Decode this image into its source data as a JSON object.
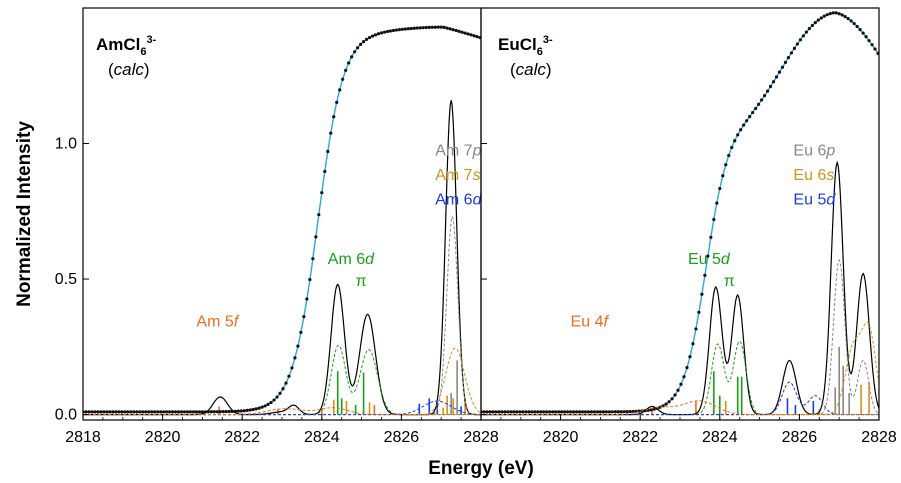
{
  "chart_data": {
    "type": "line",
    "xlabel": "Energy (eV)",
    "ylabel": "Normalized Intensity",
    "ylim": [
      -0.02,
      1.5
    ],
    "grid": false,
    "colors": {
      "total": "#000000",
      "fit": "#29a8e0",
      "p": "#888888",
      "s": "#d8901a",
      "d": "#1a3de0",
      "d_pi": "#18a018",
      "f": "#f06c20"
    },
    "panels": [
      {
        "title": "AmCl",
        "title_sub": "6",
        "title_sup": "3-",
        "subtitle_open": "(",
        "subtitle": "calc",
        "subtitle_close": ")",
        "xlim": [
          2818,
          2828
        ],
        "xticks": [
          2818,
          2820,
          2822,
          2824,
          2826,
          2828
        ],
        "xtick_labels": [
          "2818",
          "2820",
          "2822",
          "2824",
          "2826",
          "2828"
        ],
        "yticks": [
          0.0,
          0.5,
          1.0
        ],
        "ytick_labels": [
          "0.0",
          "0.5",
          "1.0"
        ],
        "annotations": [
          {
            "key": "p",
            "text": "Am 7",
            "italic": "p",
            "color": "#888888",
            "x": 2826.85,
            "y": 0.955
          },
          {
            "key": "s",
            "text": "Am 7",
            "italic": "s",
            "color": "#d8901a",
            "x": 2826.85,
            "y": 0.865
          },
          {
            "key": "d",
            "text": "Am 6",
            "italic": "d",
            "color": "#1a3de0",
            "x": 2826.85,
            "y": 0.775
          },
          {
            "key": "d6",
            "text": "Am 6",
            "italic": "d",
            "color": "#18a018",
            "x": 2824.15,
            "y": 0.555
          },
          {
            "key": "pi",
            "text": "π",
            "italic": "",
            "color": "#18a018",
            "x": 2824.85,
            "y": 0.475
          },
          {
            "key": "f",
            "text": "Am 5",
            "italic": "f",
            "color": "#f06c20",
            "x": 2820.85,
            "y": 0.325
          }
        ],
        "series": [
          {
            "key": "fit",
            "peaks": [
              [
                2824.5,
                1.4,
                1.6
              ],
              [
                2826.25,
                0.6,
                1.4
              ]
            ],
            "sigmoid": {
              "center": 2823.9,
              "width": 0.32,
              "height": 1.4
            },
            "plateau": [
              2827.05,
              1.42,
              2828,
              1.36
            ]
          },
          {
            "key": "total",
            "peaks": [
              [
                2821.45,
                0.065,
                0.18
              ],
              [
                2823.0,
                0.01,
                0.25
              ],
              [
                2823.3,
                0.03,
                0.13
              ],
              [
                2824.4,
                0.48,
                0.17
              ],
              [
                2825.15,
                0.37,
                0.2
              ],
              [
                2827.25,
                1.16,
                0.14
              ]
            ]
          },
          {
            "key": "d_pi",
            "peaks": [
              [
                2824.42,
                0.255,
                0.18
              ],
              [
                2825.18,
                0.24,
                0.22
              ]
            ]
          },
          {
            "key": "p",
            "peaks": [
              [
                2827.28,
                0.73,
                0.14
              ]
            ]
          },
          {
            "key": "s",
            "peaks": [
              [
                2827.35,
                0.245,
                0.24
              ]
            ]
          },
          {
            "key": "d",
            "peaks": [
              [
                2826.9,
                0.05,
                0.35
              ]
            ]
          },
          {
            "key": "f",
            "peaks": [
              [
                2823.1,
                0.022,
                0.45
              ],
              [
                2824.3,
                0.025,
                0.35
              ]
            ]
          }
        ],
        "sticks": [
          {
            "x": 2821.42,
            "h": 0.03,
            "c": "f"
          },
          {
            "x": 2822.9,
            "h": 0.02,
            "c": "f"
          },
          {
            "x": 2824.0,
            "h": 0.02,
            "c": "f"
          },
          {
            "x": 2824.3,
            "h": 0.055,
            "c": "s"
          },
          {
            "x": 2824.4,
            "h": 0.16,
            "c": "d_pi"
          },
          {
            "x": 2824.5,
            "h": 0.06,
            "c": "d_pi"
          },
          {
            "x": 2824.62,
            "h": 0.05,
            "c": "s"
          },
          {
            "x": 2824.85,
            "h": 0.035,
            "c": "d_pi"
          },
          {
            "x": 2825.05,
            "h": 0.155,
            "c": "d_pi"
          },
          {
            "x": 2825.2,
            "h": 0.045,
            "c": "s"
          },
          {
            "x": 2825.32,
            "h": 0.035,
            "c": "f"
          },
          {
            "x": 2826.45,
            "h": 0.04,
            "c": "d"
          },
          {
            "x": 2826.7,
            "h": 0.06,
            "c": "d"
          },
          {
            "x": 2826.9,
            "h": 0.05,
            "c": "d"
          },
          {
            "x": 2827.05,
            "h": 0.025,
            "c": "s"
          },
          {
            "x": 2827.15,
            "h": 0.07,
            "c": "s"
          },
          {
            "x": 2827.25,
            "h": 0.08,
            "c": "p"
          },
          {
            "x": 2827.3,
            "h": 0.06,
            "c": "s"
          },
          {
            "x": 2827.4,
            "h": 0.2,
            "c": "p"
          },
          {
            "x": 2827.5,
            "h": 0.03,
            "c": "d"
          },
          {
            "x": 2827.6,
            "h": 0.06,
            "c": "s"
          }
        ]
      },
      {
        "title": "EuCl",
        "title_sub": "6",
        "title_sup": "3-",
        "subtitle_open": "(",
        "subtitle": "calc",
        "subtitle_close": ")",
        "xlim": [
          2818,
          2828
        ],
        "xticks": [
          2820,
          2822,
          2824,
          2826,
          2828
        ],
        "xtick_labels": [
          "2820",
          "2822",
          "2824",
          "2826",
          "2828"
        ],
        "yticks": [
          0.0,
          0.5,
          1.0
        ],
        "ytick_labels": [],
        "annotations": [
          {
            "key": "p",
            "text": "Eu 6",
            "italic": "p",
            "color": "#888888",
            "x": 2825.85,
            "y": 0.955
          },
          {
            "key": "s",
            "text": "Eu 6",
            "italic": "s",
            "color": "#d8901a",
            "x": 2825.85,
            "y": 0.865
          },
          {
            "key": "d",
            "text": "Eu 5",
            "italic": "d",
            "color": "#1a3de0",
            "x": 2825.85,
            "y": 0.775
          },
          {
            "key": "d5",
            "text": "Eu 5",
            "italic": "d",
            "color": "#18a018",
            "x": 2823.2,
            "y": 0.555
          },
          {
            "key": "pi",
            "text": "π",
            "italic": "",
            "color": "#18a018",
            "x": 2824.1,
            "y": 0.475
          },
          {
            "key": "f",
            "text": "Eu 4",
            "italic": "f",
            "color": "#f06c20",
            "x": 2820.25,
            "y": 0.325
          }
        ],
        "series": [
          {
            "key": "fit",
            "peaks": [
              [
                2824.45,
                0.35,
                0.2
              ],
              [
                2826.85,
                0.6,
                0.6
              ]
            ],
            "sigmoid": {
              "center": 2823.65,
              "width": 0.28,
              "height": 1.05
            },
            "plateau": [
              2826.9,
              1.48,
              2828,
              1.4
            ]
          },
          {
            "key": "total",
            "peaks": [
              [
                2822.3,
                0.03,
                0.15
              ],
              [
                2823.9,
                0.47,
                0.16
              ],
              [
                2824.45,
                0.44,
                0.15
              ],
              [
                2825.75,
                0.2,
                0.17
              ],
              [
                2826.95,
                0.93,
                0.15
              ],
              [
                2827.6,
                0.52,
                0.16
              ]
            ]
          },
          {
            "key": "d_pi",
            "peaks": [
              [
                2823.95,
                0.26,
                0.16
              ],
              [
                2824.5,
                0.27,
                0.16
              ]
            ]
          },
          {
            "key": "p",
            "peaks": [
              [
                2827.0,
                0.57,
                0.14
              ],
              [
                2827.6,
                0.2,
                0.14
              ]
            ]
          },
          {
            "key": "s",
            "peaks": [
              [
                2827.35,
                0.24,
                0.2
              ],
              [
                2827.75,
                0.3,
                0.18
              ]
            ]
          },
          {
            "key": "d",
            "peaks": [
              [
                2825.75,
                0.12,
                0.18
              ],
              [
                2826.4,
                0.07,
                0.18
              ]
            ]
          },
          {
            "key": "f",
            "peaks": [
              [
                2822.5,
                0.025,
                0.4
              ],
              [
                2823.5,
                0.05,
                0.4
              ]
            ]
          }
        ],
        "sticks": [
          {
            "x": 2822.3,
            "h": 0.015,
            "c": "f"
          },
          {
            "x": 2823.4,
            "h": 0.05,
            "c": "f"
          },
          {
            "x": 2823.85,
            "h": 0.16,
            "c": "d_pi"
          },
          {
            "x": 2824.0,
            "h": 0.07,
            "c": "d_pi"
          },
          {
            "x": 2824.15,
            "h": 0.05,
            "c": "s"
          },
          {
            "x": 2824.45,
            "h": 0.14,
            "c": "d_pi"
          },
          {
            "x": 2824.55,
            "h": 0.14,
            "c": "d_pi"
          },
          {
            "x": 2825.7,
            "h": 0.06,
            "c": "d"
          },
          {
            "x": 2825.9,
            "h": 0.035,
            "c": "d"
          },
          {
            "x": 2826.35,
            "h": 0.05,
            "c": "d"
          },
          {
            "x": 2826.5,
            "h": 0.02,
            "c": "s"
          },
          {
            "x": 2826.9,
            "h": 0.1,
            "c": "p"
          },
          {
            "x": 2827.0,
            "h": 0.25,
            "c": "p"
          },
          {
            "x": 2827.1,
            "h": 0.18,
            "c": "p"
          },
          {
            "x": 2827.25,
            "h": 0.08,
            "c": "p"
          },
          {
            "x": 2827.55,
            "h": 0.11,
            "c": "s"
          },
          {
            "x": 2827.75,
            "h": 0.12,
            "c": "s"
          }
        ]
      }
    ]
  }
}
